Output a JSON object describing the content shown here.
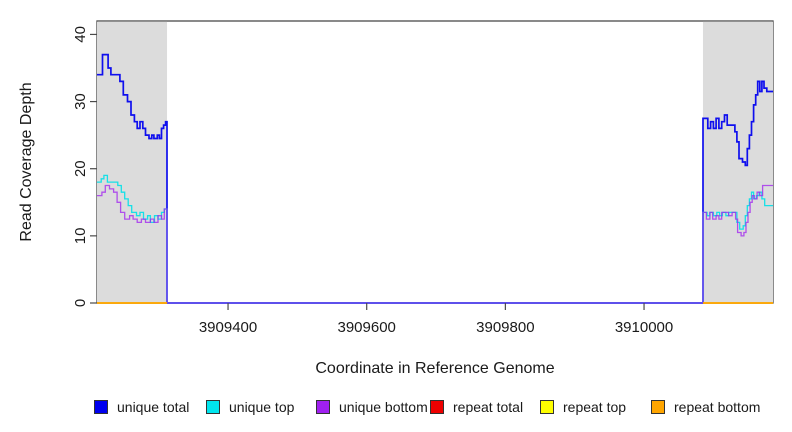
{
  "chart_data": {
    "type": "line",
    "subtype": "step-after",
    "title": "",
    "xlabel": "Coordinate in Reference Genome",
    "ylabel": "Read Coverage Depth",
    "xlim": [
      3909211,
      3910186
    ],
    "ylim": [
      0,
      42
    ],
    "x_ticks": [
      3909400,
      3909600,
      3909800,
      3910000
    ],
    "y_ticks": [
      0,
      10,
      20,
      30,
      40
    ],
    "grid": false,
    "legend_position": "bottom",
    "colors": {
      "frame": "#4a4a4a",
      "tick": "#4a4a4a",
      "text": "#1a1a1a",
      "background": "#ffffff",
      "shade": "#dcdcdc"
    },
    "shaded_regions": [
      {
        "x0": 3909211,
        "x1": 3909312,
        "color": "#dcdcdc"
      },
      {
        "x0": 3910085,
        "x1": 3910186,
        "color": "#dcdcdc"
      }
    ],
    "series": [
      {
        "name": "unique total",
        "color": "#0f0fee",
        "width": 1.7,
        "opacity": 1,
        "segments": [
          [
            [
              3909211,
              34
            ],
            [
              3909219,
              37
            ],
            [
              3909227,
              35
            ],
            [
              3909231,
              34
            ],
            [
              3909244,
              33
            ],
            [
              3909249,
              31
            ],
            [
              3909255,
              30
            ],
            [
              3909260,
              28
            ],
            [
              3909265,
              27
            ],
            [
              3909269,
              26
            ],
            [
              3909273,
              27
            ],
            [
              3909277,
              26
            ],
            [
              3909281,
              25
            ],
            [
              3909286,
              24.5
            ],
            [
              3909290,
              25
            ],
            [
              3909293,
              24.5
            ],
            [
              3909298,
              25
            ],
            [
              3909301,
              24.5
            ],
            [
              3909304,
              26
            ],
            [
              3909307,
              26.5
            ],
            [
              3909310,
              27
            ],
            [
              3909312,
              0
            ],
            [
              3910085,
              27.5
            ],
            [
              3910092,
              26
            ],
            [
              3910096,
              27
            ],
            [
              3910100,
              26
            ],
            [
              3910104,
              27.5
            ],
            [
              3910108,
              26
            ],
            [
              3910112,
              27
            ],
            [
              3910116,
              28
            ],
            [
              3910120,
              26.5
            ],
            [
              3910131,
              25.5
            ],
            [
              3910134,
              24
            ],
            [
              3910137,
              21.5
            ],
            [
              3910142,
              21
            ],
            [
              3910146,
              20.5
            ],
            [
              3910149,
              23
            ],
            [
              3910152,
              25
            ],
            [
              3910155,
              27
            ],
            [
              3910158,
              29.5
            ],
            [
              3910161,
              31
            ],
            [
              3910164,
              33
            ],
            [
              3910167,
              31.5
            ],
            [
              3910170,
              33
            ],
            [
              3910173,
              32
            ],
            [
              3910177,
              31.5
            ],
            [
              3910186,
              31.5
            ]
          ]
        ]
      },
      {
        "name": "unique top",
        "color": "#00e0e8",
        "width": 1.3,
        "opacity": 0.9,
        "segments": [
          [
            [
              3909211,
              18
            ],
            [
              3909217,
              18.5
            ],
            [
              3909221,
              19
            ],
            [
              3909226,
              18
            ],
            [
              3909241,
              17.5
            ],
            [
              3909246,
              16.5
            ],
            [
              3909251,
              15.5
            ],
            [
              3909256,
              14.5
            ],
            [
              3909261,
              13.5
            ],
            [
              3909268,
              13
            ],
            [
              3909273,
              13.5
            ],
            [
              3909278,
              12.5
            ],
            [
              3909284,
              13
            ],
            [
              3909288,
              12
            ],
            [
              3909294,
              13
            ],
            [
              3909299,
              12.5
            ],
            [
              3909304,
              13.5
            ],
            [
              3909308,
              14
            ],
            [
              3909312,
              0
            ],
            [
              3910085,
              13.5
            ],
            [
              3910091,
              13
            ],
            [
              3910095,
              13.5
            ],
            [
              3910100,
              13
            ],
            [
              3910105,
              13.5
            ],
            [
              3910109,
              13
            ],
            [
              3910113,
              13.5
            ],
            [
              3910118,
              13
            ],
            [
              3910122,
              13.5
            ],
            [
              3910134,
              12
            ],
            [
              3910138,
              11
            ],
            [
              3910143,
              11.5
            ],
            [
              3910146,
              13
            ],
            [
              3910149,
              14.5
            ],
            [
              3910152,
              15.5
            ],
            [
              3910155,
              16.5
            ],
            [
              3910158,
              15.5
            ],
            [
              3910162,
              16
            ],
            [
              3910166,
              16.5
            ],
            [
              3910170,
              15.5
            ],
            [
              3910174,
              14.5
            ],
            [
              3910186,
              14.5
            ]
          ]
        ]
      },
      {
        "name": "unique bottom",
        "color": "#a020f0",
        "width": 1.3,
        "opacity": 0.75,
        "segments": [
          [
            [
              3909211,
              16
            ],
            [
              3909218,
              16.5
            ],
            [
              3909223,
              17.5
            ],
            [
              3909229,
              17
            ],
            [
              3909235,
              16.5
            ],
            [
              3909240,
              15
            ],
            [
              3909245,
              13.5
            ],
            [
              3909251,
              12.5
            ],
            [
              3909258,
              13
            ],
            [
              3909263,
              12.5
            ],
            [
              3909269,
              12
            ],
            [
              3909275,
              12.5
            ],
            [
              3909281,
              12
            ],
            [
              3909288,
              12.5
            ],
            [
              3909293,
              12
            ],
            [
              3909299,
              13
            ],
            [
              3909304,
              12.5
            ],
            [
              3909308,
              14
            ],
            [
              3909312,
              0
            ],
            [
              3910085,
              13.5
            ],
            [
              3910090,
              12.5
            ],
            [
              3910095,
              13.5
            ],
            [
              3910099,
              12.5
            ],
            [
              3910104,
              13
            ],
            [
              3910108,
              12.5
            ],
            [
              3910112,
              13.5
            ],
            [
              3910122,
              13
            ],
            [
              3910127,
              13.5
            ],
            [
              3910132,
              12.5
            ],
            [
              3910135,
              10.5
            ],
            [
              3910140,
              10
            ],
            [
              3910144,
              10.5
            ],
            [
              3910147,
              12
            ],
            [
              3910150,
              13.5
            ],
            [
              3910153,
              15
            ],
            [
              3910156,
              16
            ],
            [
              3910159,
              15.5
            ],
            [
              3910163,
              16.5
            ],
            [
              3910167,
              16
            ],
            [
              3910171,
              17.5
            ],
            [
              3910186,
              17.5
            ]
          ]
        ]
      },
      {
        "name": "repeat total",
        "color": "#ee0000",
        "width": 1.4,
        "opacity": 1,
        "segments": [
          [
            [
              3909211,
              0
            ],
            [
              3909312,
              0
            ]
          ],
          [
            [
              3910085,
              0
            ],
            [
              3910186,
              0
            ]
          ]
        ]
      },
      {
        "name": "repeat top",
        "color": "#ffff00",
        "width": 1.4,
        "opacity": 1,
        "segments": [
          [
            [
              3909211,
              0
            ],
            [
              3909312,
              0
            ]
          ],
          [
            [
              3910085,
              0
            ],
            [
              3910186,
              0
            ]
          ]
        ]
      },
      {
        "name": "repeat bottom",
        "color": "#ffa500",
        "width": 1.5,
        "opacity": 1,
        "segments": [
          [
            [
              3909211,
              0
            ],
            [
              3909312,
              0
            ]
          ],
          [
            [
              3910085,
              0
            ],
            [
              3910186,
              0
            ]
          ]
        ]
      }
    ],
    "legend": [
      {
        "label": "unique total",
        "color": "#0000ee"
      },
      {
        "label": "unique top",
        "color": "#00e5ee"
      },
      {
        "label": "unique bottom",
        "color": "#a020f0"
      },
      {
        "label": "repeat total",
        "color": "#ee0000"
      },
      {
        "label": "repeat top",
        "color": "#ffff00"
      },
      {
        "label": "repeat bottom",
        "color": "#ffa500"
      }
    ]
  }
}
